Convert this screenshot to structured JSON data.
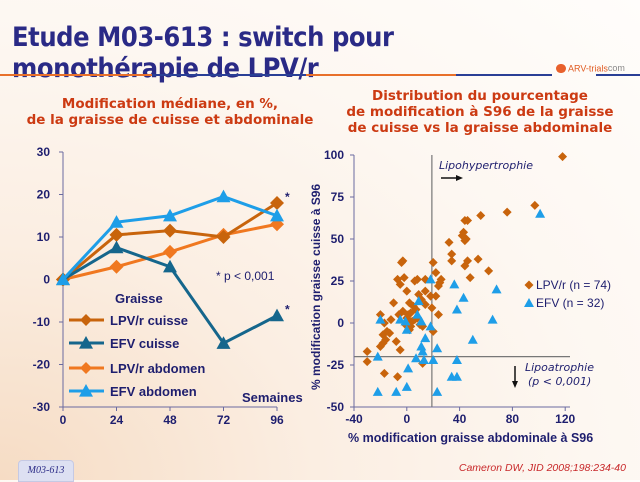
{
  "slide": {
    "title": "Etude M03-613 : switch pour monothérapie de LPV/r",
    "logo_text_a": "ARV-trials",
    "logo_text_b": "com",
    "footer_badge": "M03-613",
    "citation": "Cameron DW, JID 2008;198:234-40",
    "colors": {
      "title": "#2a2a86",
      "subtitle": "#cc3a12",
      "rule_orange": "#e8702a",
      "rule_blue": "#2a3f96"
    }
  },
  "chart_data": [
    {
      "type": "line",
      "title": "Modification médiane, en %,\nde la graisse de cuisse et abdominale",
      "title_lines": [
        "Modification médiane, en %,",
        "de la graisse de cuisse et abdominale"
      ],
      "xlabel": "Semaines",
      "ylabel": "",
      "x": [
        0,
        24,
        48,
        72,
        96
      ],
      "xticks": [
        "0",
        "24",
        "48",
        "72",
        "96"
      ],
      "yticks": [
        "30",
        "20",
        "10",
        "0",
        "-10",
        "-20",
        "-30"
      ],
      "ylim": [
        -30,
        30
      ],
      "xlim": [
        0,
        96
      ],
      "grid": false,
      "legend_title": "Graisse",
      "legend_position": "bottom-left",
      "note": "* p < 0,001",
      "series": [
        {
          "name": "LPV/r cuisse",
          "marker": "diamond",
          "color": "#c8640c",
          "values": [
            0,
            10.5,
            11.5,
            10,
            18
          ],
          "star_last": true
        },
        {
          "name": "EFV cuisse",
          "marker": "triangle",
          "color": "#15668c",
          "values": [
            0,
            7.5,
            3,
            -15,
            -8.5
          ],
          "star_last": true
        },
        {
          "name": "LPV/r abdomen",
          "marker": "diamond",
          "color": "#f07820",
          "values": [
            0,
            3,
            6.5,
            10.5,
            13
          ],
          "star_last": false
        },
        {
          "name": "EFV abdomen",
          "marker": "triangle",
          "color": "#1e9ee8",
          "values": [
            0,
            13.5,
            15,
            19.5,
            15
          ],
          "star_last": false
        }
      ]
    },
    {
      "type": "scatter",
      "title_lines": [
        "Distribution du pourcentage",
        "de modification à S96 de la graisse",
        "de cuisse vs la graisse abdominale"
      ],
      "xlabel": "% modification graisse abdominale à S96",
      "ylabel": "% modification graisse cuisse à S96",
      "xlim": [
        -40,
        125
      ],
      "ylim": [
        -50,
        100
      ],
      "xticks": [
        "-40",
        "0",
        "40",
        "80",
        "120"
      ],
      "xtick_values": [
        -40,
        0,
        40,
        80,
        120
      ],
      "yticks": [
        "100",
        "75",
        "50",
        "25",
        "0",
        "-25",
        "-50"
      ],
      "ytick_values": [
        100,
        75,
        50,
        25,
        0,
        -25,
        -50
      ],
      "grid": false,
      "reference_lines": {
        "x": 19,
        "y": -20
      },
      "annotations": {
        "hypertrophy": "Lipohypertrophie",
        "atrophy_line1": "Lipoatrophie",
        "atrophy_line2": "(p < 0,001)"
      },
      "legend_position": "right",
      "series": [
        {
          "name": "LPV/r (n = 74)",
          "marker": "diamond",
          "color": "#c8640c",
          "points": [
            [
              118,
              99
            ],
            [
              97,
              70
            ],
            [
              76,
              66
            ],
            [
              56,
              64
            ],
            [
              46,
              61
            ],
            [
              44,
              61
            ],
            [
              42,
              52
            ],
            [
              43,
              54
            ],
            [
              45,
              50
            ],
            [
              44,
              49
            ],
            [
              32,
              48
            ],
            [
              34,
              41
            ],
            [
              34,
              37
            ],
            [
              46,
              37
            ],
            [
              54,
              38
            ],
            [
              44,
              34
            ],
            [
              48,
              27
            ],
            [
              62,
              31
            ],
            [
              20,
              36
            ],
            [
              22,
              30
            ],
            [
              -3,
              37
            ],
            [
              -4,
              36
            ],
            [
              -7,
              26
            ],
            [
              -2,
              27
            ],
            [
              -5,
              23
            ],
            [
              25,
              24
            ],
            [
              26,
              26
            ],
            [
              24,
              22
            ],
            [
              22,
              16
            ],
            [
              19,
              9
            ],
            [
              18,
              16
            ],
            [
              14,
              19
            ],
            [
              9,
              17
            ],
            [
              11,
              14
            ],
            [
              14,
              11
            ],
            [
              24,
              5
            ],
            [
              12,
              -2
            ],
            [
              14,
              26
            ],
            [
              8,
              26
            ],
            [
              6,
              25
            ],
            [
              0,
              19
            ],
            [
              2,
              12
            ],
            [
              5,
              10
            ],
            [
              7,
              8
            ],
            [
              3,
              6
            ],
            [
              1,
              5
            ],
            [
              0,
              3
            ],
            [
              -3,
              7
            ],
            [
              -6,
              5
            ],
            [
              -10,
              12
            ],
            [
              -12,
              2
            ],
            [
              -20,
              5
            ],
            [
              -17,
              0
            ],
            [
              -15,
              -5
            ],
            [
              -13,
              -6
            ],
            [
              -18,
              -7
            ],
            [
              -16,
              -10
            ],
            [
              -18,
              -12
            ],
            [
              -20,
              -14
            ],
            [
              -8,
              -11
            ],
            [
              -5,
              -16
            ],
            [
              -30,
              -17
            ],
            [
              -30,
              -23
            ],
            [
              -17,
              -30
            ],
            [
              -7,
              -32
            ],
            [
              3,
              -2
            ],
            [
              4,
              1
            ],
            [
              6,
              2
            ],
            [
              8,
              3
            ],
            [
              10,
              -1
            ],
            [
              -1,
              -1
            ],
            [
              2,
              -4
            ],
            [
              20,
              -5
            ],
            [
              12,
              -24
            ]
          ]
        },
        {
          "name": "EFV (n = 32)",
          "marker": "triangle",
          "color": "#1e9ee8",
          "points": [
            [
              101,
              65
            ],
            [
              18,
              26
            ],
            [
              36,
              23
            ],
            [
              68,
              20
            ],
            [
              43,
              15
            ],
            [
              50,
              -10
            ],
            [
              65,
              2
            ],
            [
              38,
              8
            ],
            [
              9,
              13
            ],
            [
              8,
              5
            ],
            [
              -1,
              1
            ],
            [
              -5,
              2
            ],
            [
              -20,
              2
            ],
            [
              0,
              -4
            ],
            [
              11,
              1
            ],
            [
              18,
              -2
            ],
            [
              14,
              -9
            ],
            [
              11,
              -14
            ],
            [
              12,
              -17
            ],
            [
              23,
              -15
            ],
            [
              13,
              -22
            ],
            [
              7,
              -21
            ],
            [
              20,
              -22
            ],
            [
              38,
              -22
            ],
            [
              -22,
              -20
            ],
            [
              1,
              -27
            ],
            [
              34,
              -32
            ],
            [
              38,
              -32
            ],
            [
              -22,
              -41
            ],
            [
              -8,
              -41
            ],
            [
              0,
              -38
            ],
            [
              23,
              -41
            ]
          ]
        }
      ]
    }
  ]
}
